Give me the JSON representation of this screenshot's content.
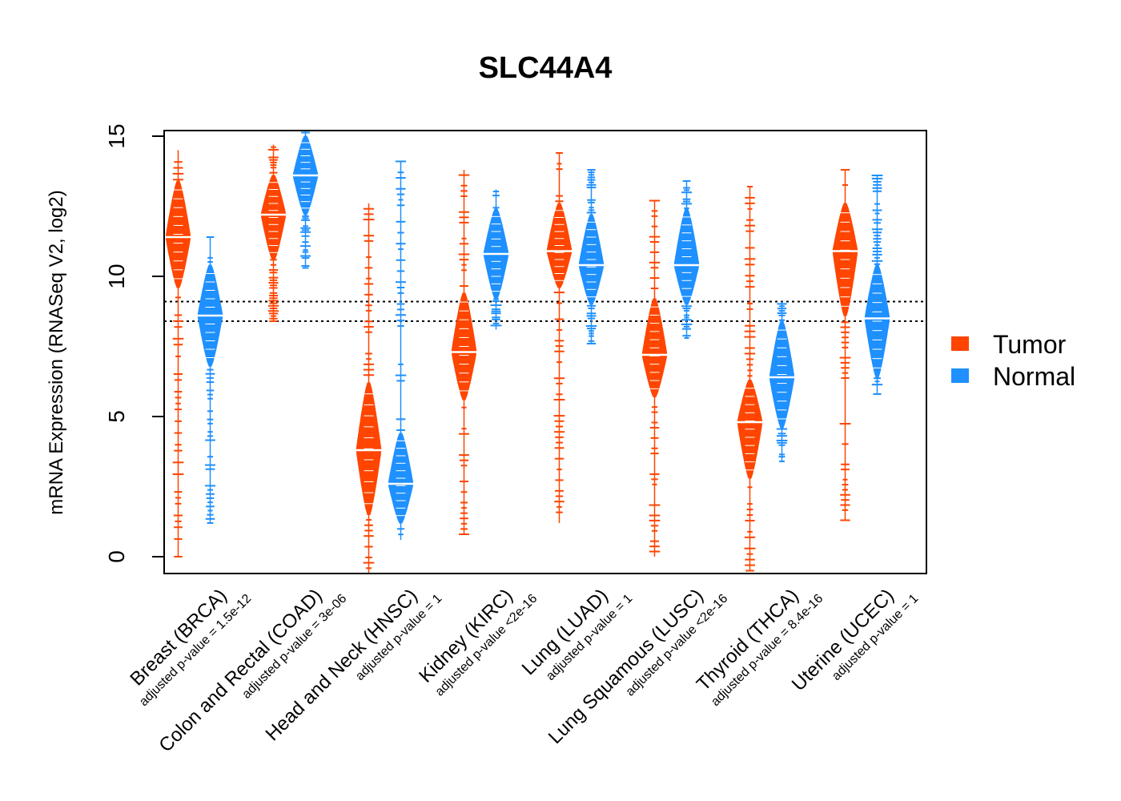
{
  "chart_data": {
    "type": "beanplot",
    "title": "SLC44A4",
    "ylabel": "mRNA Expression (RNASeq V2, log2)",
    "xlabel": "",
    "ylim": [
      -0.6,
      15.2
    ],
    "yticks": [
      0,
      5,
      10,
      15
    ],
    "reference_lines": [
      9.1,
      8.4
    ],
    "colors": {
      "Tumor": "#FF4500",
      "Normal": "#1E90FF"
    },
    "legend": {
      "position": "right",
      "entries": [
        "Tumor",
        "Normal"
      ]
    },
    "categories": [
      {
        "label": "Breast (BRCA)",
        "pvalue": "adjusted p-value = 1.5e-12"
      },
      {
        "label": "Colon and Rectal (COAD)",
        "pvalue": "adjusted p-value = 3e-06"
      },
      {
        "label": "Head and Neck (HNSC)",
        "pvalue": "adjusted p-value = 1"
      },
      {
        "label": "Kidney (KIRC)",
        "pvalue": "adjusted p-value <2e-16"
      },
      {
        "label": "Lung (LUAD)",
        "pvalue": "adjusted p-value = 1"
      },
      {
        "label": "Lung Squamous (LUSC)",
        "pvalue": "adjusted p-value <2e-16"
      },
      {
        "label": "Thyroid (THCA)",
        "pvalue": "adjusted p-value = 8.4e-16"
      },
      {
        "label": "Uterine (UCEC)",
        "pvalue": "adjusted p-value = 1"
      }
    ],
    "series": [
      {
        "name": "Tumor",
        "median": [
          11.4,
          12.2,
          3.8,
          7.3,
          10.9,
          7.2,
          4.8,
          10.9
        ],
        "min": [
          0,
          8.4,
          -0.6,
          0.8,
          1.2,
          0,
          -0.5,
          1.3
        ],
        "max": [
          14.5,
          14.7,
          12.6,
          13.8,
          14.4,
          12.7,
          13.2,
          13.8
        ],
        "core_low": [
          9.6,
          10.6,
          1.5,
          5.6,
          9.6,
          5.7,
          2.8,
          8.6
        ],
        "core_high": [
          13.4,
          13.6,
          6.2,
          9.4,
          12.6,
          9.2,
          6.3,
          12.6
        ]
      },
      {
        "name": "Normal",
        "median": [
          8.6,
          13.6,
          2.6,
          10.8,
          10.4,
          10.4,
          6.4,
          8.5
        ],
        "min": [
          1.2,
          10.3,
          0.6,
          8.1,
          7.6,
          7.8,
          3.4,
          5.8
        ],
        "max": [
          11.4,
          15.2,
          14.1,
          13.1,
          13.8,
          13.4,
          9.1,
          13.6
        ],
        "core_low": [
          6.8,
          12.2,
          1.2,
          9.2,
          9.0,
          9.0,
          4.6,
          6.4
        ],
        "core_high": [
          10.4,
          15.0,
          4.4,
          12.4,
          12.2,
          12.4,
          8.4,
          10.4
        ]
      }
    ]
  }
}
